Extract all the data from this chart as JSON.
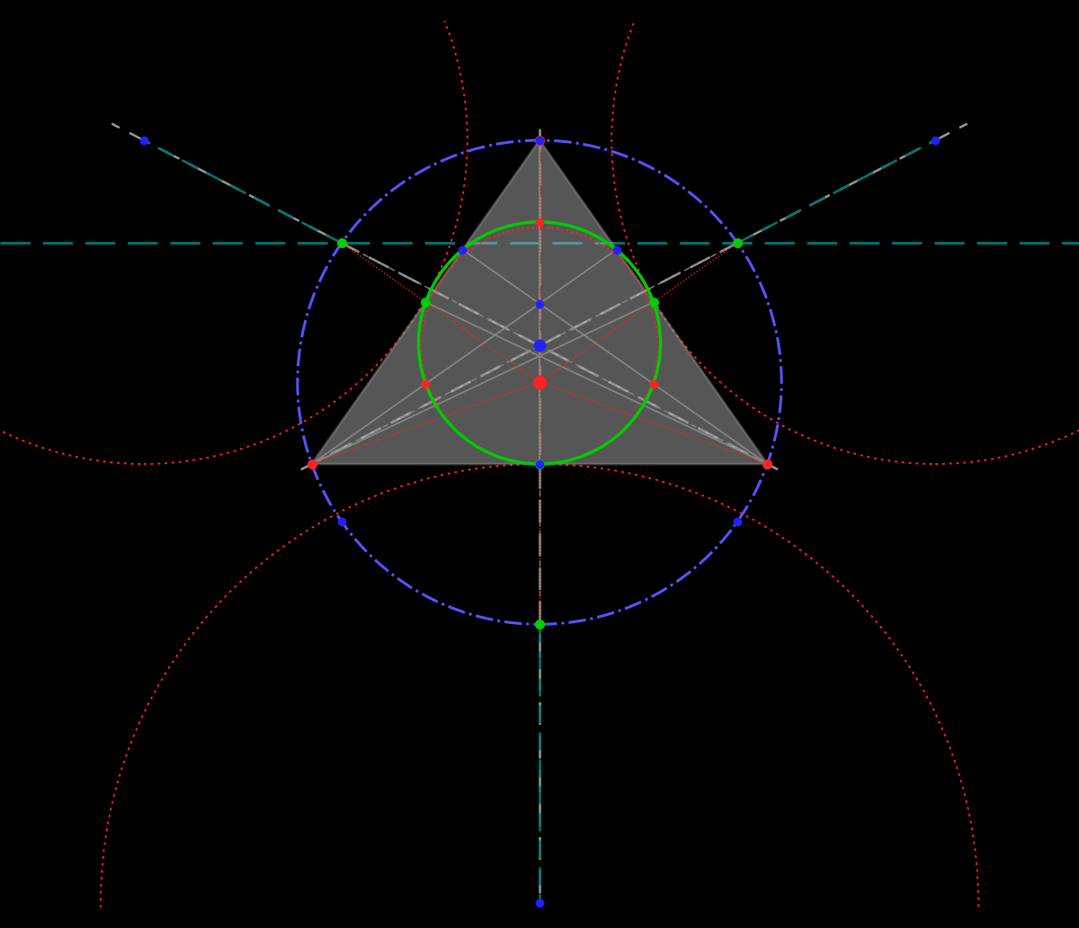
{
  "bg_color": "#000000",
  "triangle_fill": "#c0c0c0",
  "triangle_fill_alpha": 0.45,
  "triangle_edge_color": "#909090",
  "circumcircle_color": "#5555ff",
  "nine_point_color": "#00cc00",
  "incircle_color": "#ff2222",
  "excircle_color": "#ff2222",
  "teal_color": "#007777",
  "gray_dash_color": "#999999",
  "red_dot_color": "#ff2222",
  "green_dot_color": "#00cc00",
  "blue_dot_color": "#2222ff",
  "gray_line_color": "#888888",
  "A": [
    0.0,
    2.2
  ],
  "B": [
    -1.9,
    -0.5
  ],
  "C": [
    1.9,
    -0.5
  ]
}
